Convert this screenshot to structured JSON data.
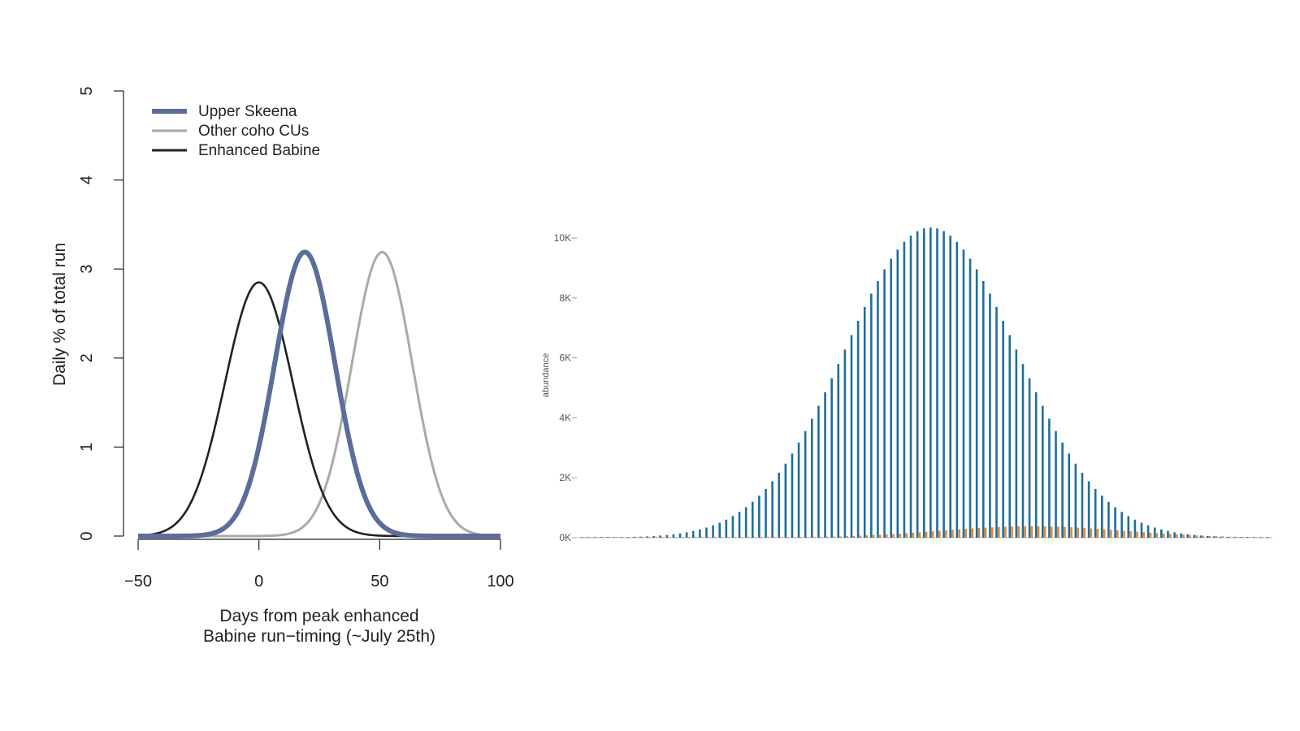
{
  "chart_data": [
    {
      "type": "line",
      "xlabel": [
        "Days from peak enhanced",
        "Babine run−timing (~July 25th)"
      ],
      "ylabel": "Daily % of total run",
      "xlim": [
        -50,
        100
      ],
      "ylim": [
        0,
        5
      ],
      "xticks": [
        "−50",
        "0",
        "50",
        "100"
      ],
      "yticks": [
        "0",
        "1",
        "2",
        "3",
        "4",
        "5"
      ],
      "legend_position": "top-left",
      "series": [
        {
          "name": "Upper Skeena",
          "color": "#5b6d9a",
          "peak_x": 19,
          "peak_y": 3.19,
          "sd": 12.5
        },
        {
          "name": "Other coho CUs",
          "color": "#aaaaaa",
          "peak_x": 51,
          "peak_y": 3.19,
          "sd": 12.5
        },
        {
          "name": "Enhanced Babine",
          "color": "#222222",
          "peak_x": 0,
          "peak_y": 2.85,
          "sd": 14
        }
      ]
    },
    {
      "type": "bar",
      "ylabel": "abundance",
      "yticks": [
        "0K",
        "2K",
        "4K",
        "6K",
        "8K",
        "10K"
      ],
      "ylim": [
        0,
        10000
      ],
      "grid": false,
      "series": [
        {
          "color": "#1f6e99",
          "peak_value": 10350,
          "peak_index": 53,
          "sd": 13,
          "count": 105
        },
        {
          "color": "#e0883a",
          "peak_value": 380,
          "peak_index": 68,
          "sd": 14,
          "count": 105
        }
      ]
    }
  ]
}
